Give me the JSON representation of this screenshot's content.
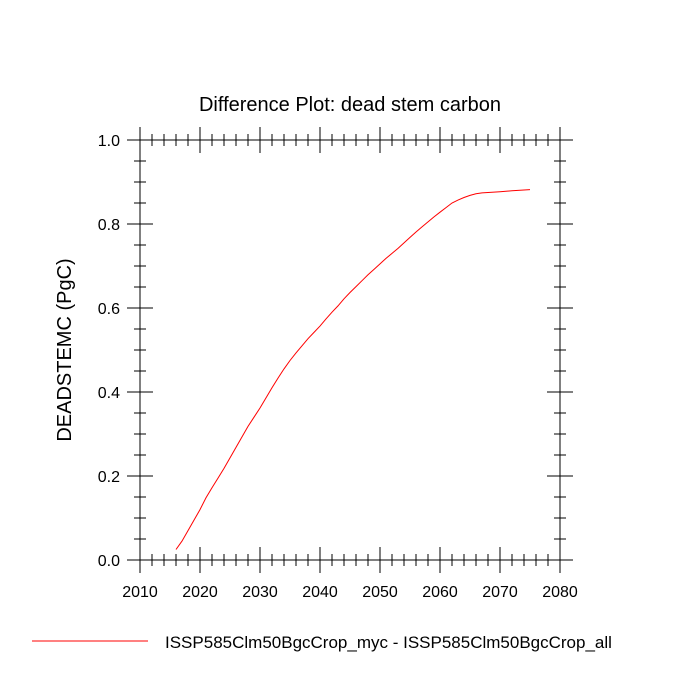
{
  "chart_data": {
    "type": "line",
    "title": "Difference Plot: dead stem carbon",
    "xlabel": "",
    "ylabel": "DEADSTEMC  (PgC)",
    "xlim": [
      2010,
      2080
    ],
    "ylim": [
      0.0,
      1.0
    ],
    "xticks": [
      2010,
      2020,
      2030,
      2040,
      2050,
      2060,
      2070,
      2080
    ],
    "xtick_labels": [
      "2010",
      "2020",
      "2030",
      "2040",
      "2050",
      "2060",
      "2070",
      "2080"
    ],
    "yticks": [
      0.0,
      0.2,
      0.4,
      0.6,
      0.8,
      1.0
    ],
    "ytick_labels": [
      "0.0",
      "0.2",
      "0.4",
      "0.6",
      "0.8",
      "1.0"
    ],
    "grid": false,
    "legend_position": "bottom",
    "series": [
      {
        "name": "ISSP585Clm50BgcCrop_myc - ISSP585Clm50BgcCrop_all",
        "color": "#ff0000",
        "x": [
          2016,
          2017,
          2018,
          2019,
          2020,
          2021,
          2022,
          2023,
          2024,
          2025,
          2026,
          2027,
          2028,
          2029,
          2030,
          2031,
          2032,
          2033,
          2034,
          2035,
          2036,
          2037,
          2038,
          2039,
          2040,
          2041,
          2042,
          2043,
          2044,
          2045,
          2046,
          2047,
          2048,
          2049,
          2050,
          2051,
          2052,
          2053,
          2054,
          2055,
          2056,
          2057,
          2058,
          2059,
          2060,
          2061,
          2062,
          2063,
          2064,
          2065,
          2066,
          2067,
          2068,
          2069,
          2070,
          2071,
          2072,
          2073,
          2074,
          2075
        ],
        "values": [
          0.025,
          0.045,
          0.07,
          0.095,
          0.12,
          0.148,
          0.172,
          0.195,
          0.218,
          0.243,
          0.268,
          0.293,
          0.318,
          0.34,
          0.362,
          0.386,
          0.41,
          0.433,
          0.455,
          0.475,
          0.493,
          0.51,
          0.527,
          0.542,
          0.557,
          0.574,
          0.59,
          0.605,
          0.622,
          0.637,
          0.651,
          0.665,
          0.679,
          0.692,
          0.705,
          0.718,
          0.73,
          0.742,
          0.755,
          0.768,
          0.781,
          0.793,
          0.805,
          0.817,
          0.828,
          0.839,
          0.85,
          0.857,
          0.863,
          0.868,
          0.872,
          0.874,
          0.875,
          0.876,
          0.877,
          0.878,
          0.879,
          0.88,
          0.881,
          0.882
        ]
      }
    ]
  }
}
